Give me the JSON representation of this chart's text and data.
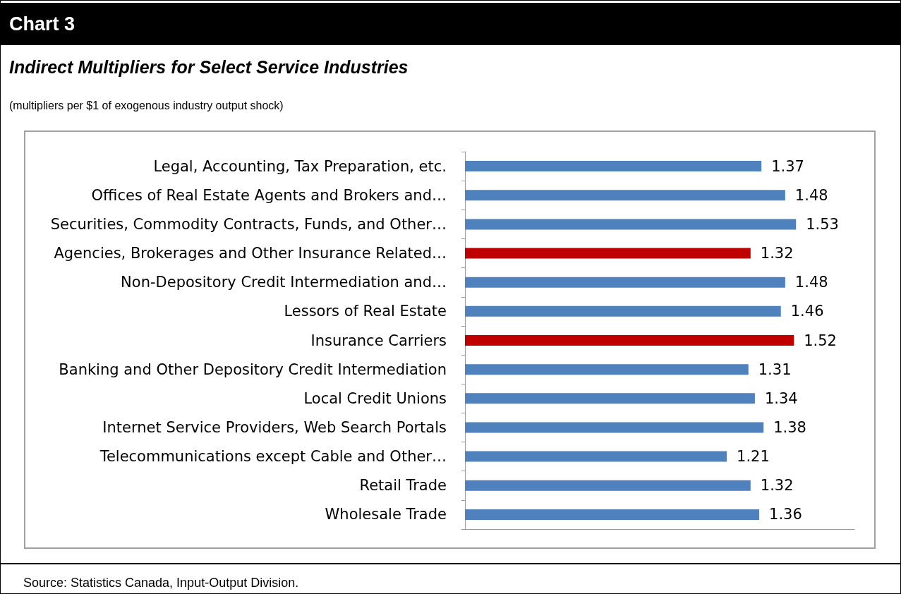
{
  "chart_data": {
    "type": "bar",
    "orientation": "horizontal",
    "title": "Chart 3",
    "subtitle": "Indirect Multipliers for Select Service Industries",
    "annotations": [
      "(multipliers per $1 of exogenous industry output shock)",
      "Source: Statistics Canada, Input-Output Division."
    ],
    "categories": [
      "Legal, Accounting, Tax Preparation, etc.",
      "Offices of Real Estate Agents and Brokers and…",
      "Securities, Commodity Contracts, Funds, and Other…",
      "Agencies, Brokerages and Other Insurance Related…",
      "Non-Depository Credit Intermediation and…",
      "Lessors of Real Estate",
      "Insurance Carriers",
      "Banking and Other Depository Credit Intermediation",
      "Local Credit Unions",
      "Internet Service Providers, Web Search Portals",
      "Telecommunications except Cable and Other…",
      "Retail Trade",
      "Wholesale Trade"
    ],
    "values": [
      1.37,
      1.48,
      1.53,
      1.32,
      1.48,
      1.46,
      1.52,
      1.31,
      1.34,
      1.38,
      1.21,
      1.32,
      1.36
    ],
    "colors": [
      "#4f81bd",
      "#4f81bd",
      "#4f81bd",
      "#c00000",
      "#4f81bd",
      "#4f81bd",
      "#c00000",
      "#4f81bd",
      "#4f81bd",
      "#4f81bd",
      "#4f81bd",
      "#4f81bd",
      "#4f81bd"
    ],
    "data_labels": true,
    "grid": false
  }
}
